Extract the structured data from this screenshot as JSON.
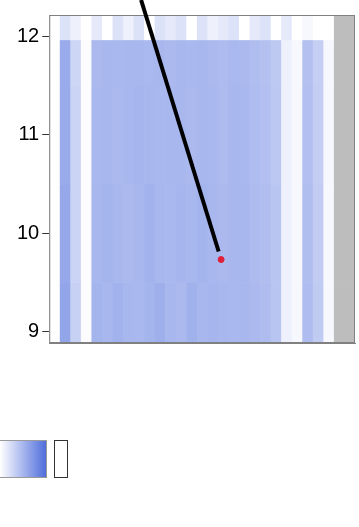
{
  "chart_data": {
    "type": "heatmap",
    "xlim": [
      0,
      29
    ],
    "ylim": [
      8.88,
      12.22
    ],
    "yticks": [
      9,
      10,
      11,
      12
    ],
    "tick_labels": "y",
    "grid": false,
    "x_edges": [
      0,
      1,
      2,
      3,
      4,
      5,
      6,
      7,
      8,
      9,
      10,
      11,
      12,
      13,
      14,
      15,
      16,
      17,
      18,
      19,
      20,
      21,
      22,
      23,
      24,
      25,
      26,
      27,
      28,
      29
    ],
    "y_edges": [
      8.88,
      9.5,
      10.5,
      11.5,
      11.97,
      12.22
    ],
    "cells": [
      [
        0,
        0.62,
        0.32,
        0.02,
        0.52,
        0.5,
        0.53,
        0.5,
        0.49,
        0.52,
        0.55,
        0.5,
        0.48,
        0.54,
        0.5,
        0.51,
        0.5,
        0.49,
        0.5,
        0.48,
        0.46,
        0.4,
        0.1,
        0.05,
        0.46,
        0.36,
        0.05,
        null,
        null
      ],
      [
        0,
        0.6,
        0.3,
        0.02,
        0.5,
        0.52,
        0.5,
        0.48,
        0.5,
        0.53,
        0.5,
        0.49,
        0.51,
        0.5,
        0.52,
        0.5,
        0.48,
        0.5,
        0.5,
        0.47,
        0.45,
        0.4,
        0.1,
        0.05,
        0.45,
        0.35,
        0.05,
        null,
        null
      ],
      [
        0,
        0.58,
        0.3,
        0.02,
        0.49,
        0.5,
        0.48,
        0.5,
        0.51,
        0.5,
        0.49,
        0.5,
        0.5,
        0.48,
        0.5,
        0.49,
        0.47,
        0.5,
        0.49,
        0.46,
        0.44,
        0.38,
        0.1,
        0.05,
        0.44,
        0.34,
        0.05,
        null,
        null
      ],
      [
        0,
        0.58,
        0.28,
        0.02,
        0.48,
        0.5,
        0.49,
        0.5,
        0.5,
        0.49,
        0.5,
        0.48,
        0.5,
        0.49,
        0.5,
        0.48,
        0.47,
        0.49,
        0.48,
        0.45,
        0.43,
        0.37,
        0.1,
        0.05,
        0.43,
        0.33,
        0.05,
        null,
        null
      ],
      [
        0,
        0.2,
        0.1,
        0,
        0.15,
        0,
        0.2,
        0.1,
        0.2,
        0,
        0.2,
        0.15,
        0.2,
        0,
        0.2,
        0.1,
        0.15,
        0.2,
        0,
        0.15,
        0.2,
        0,
        0.15,
        0,
        0.05,
        0,
        0,
        null,
        null
      ]
    ],
    "colorbar_range": [
      0,
      1
    ],
    "point": {
      "x": 16.3,
      "y": 9.73,
      "color": "#e0203a"
    }
  }
}
